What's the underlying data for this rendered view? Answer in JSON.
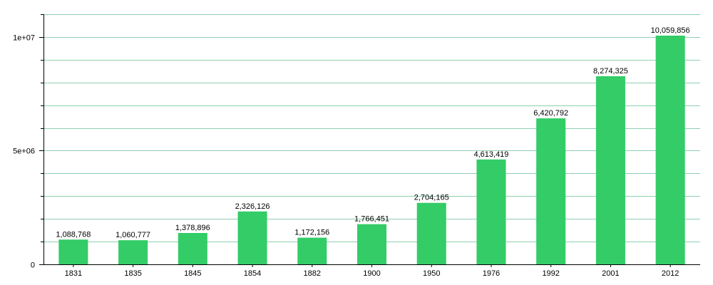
{
  "chart_data": {
    "type": "bar",
    "title": "",
    "xlabel": "",
    "ylabel": "",
    "categories": [
      "1831",
      "1835",
      "1845",
      "1854",
      "1882",
      "1900",
      "1950",
      "1976",
      "1992",
      "2001",
      "2012"
    ],
    "values": [
      1088768,
      1060777,
      1378896,
      2326126,
      1172156,
      1766451,
      2704165,
      4613419,
      6420792,
      8274325,
      10059856
    ],
    "value_labels": [
      "1,088,768",
      "1,060,777",
      "1,378,896",
      "2,326,126",
      "1,172,156",
      "1,766,451",
      "2,704,165",
      "4,613,419",
      "6,420,792",
      "8,274,325",
      "10,059,856"
    ],
    "ylim": [
      0,
      11000000
    ],
    "y_ticks": [
      0,
      5000000,
      10000000
    ],
    "y_tick_labels": [
      "0",
      "5e+06",
      "1e+07"
    ],
    "y_minor_step": 1000000,
    "grid": true,
    "legend": "none",
    "colors": {
      "bar": "#33cc66",
      "grid": "#8fcfb0",
      "axis": "#000000"
    }
  }
}
